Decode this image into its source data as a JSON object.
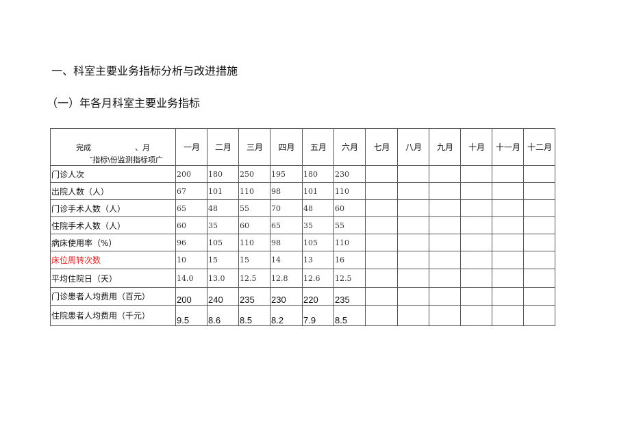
{
  "heading1": "一、科室主要业务指标分析与改进措施",
  "heading2": "（一）年各月科室主要业务指标",
  "table": {
    "corner": {
      "line1a": "完成",
      "line1b": "、月",
      "line2": "″指标\\份监测指标项广"
    },
    "months": [
      "一月",
      "二月",
      "三月",
      "四月",
      "五月",
      "六月",
      "七月",
      "八月",
      "九月",
      "十月",
      "十一月",
      "十二月"
    ],
    "rows": [
      {
        "label": "门诊人次",
        "values": [
          "200",
          "180",
          "250",
          "195",
          "180",
          "230"
        ]
      },
      {
        "label": "出院人数（人）",
        "values": [
          "67",
          "101",
          "110",
          "98",
          "101",
          "110"
        ]
      },
      {
        "label": "门诊手术人数（人）",
        "values": [
          "65",
          "48",
          "55",
          "70",
          "48",
          "60"
        ]
      },
      {
        "label": "住院手术人数（人）",
        "values": [
          "60",
          "35",
          "60",
          "65",
          "35",
          "55"
        ]
      },
      {
        "label": "病床使用率（%）",
        "values": [
          "96",
          "105",
          "110",
          "98",
          "105",
          "110"
        ]
      },
      {
        "label": "床位周转次数",
        "values": [
          "10",
          "15",
          "15",
          "14",
          "13",
          "16"
        ],
        "color": "#e02020"
      },
      {
        "label": "平均住院日（天）",
        "values": [
          "14.0",
          "13.0",
          "12.5",
          "12.8",
          "12.6",
          "12.5"
        ]
      },
      {
        "label": "门诊患者人均费用（百元）",
        "values": [
          "200",
          "240",
          "235",
          "230",
          "220",
          "235"
        ]
      },
      {
        "label": "住院患者人均费用（千元）",
        "values": [
          "9.5",
          "8.6",
          "8.5",
          "8.2",
          "7.9",
          "8.5"
        ]
      }
    ]
  }
}
